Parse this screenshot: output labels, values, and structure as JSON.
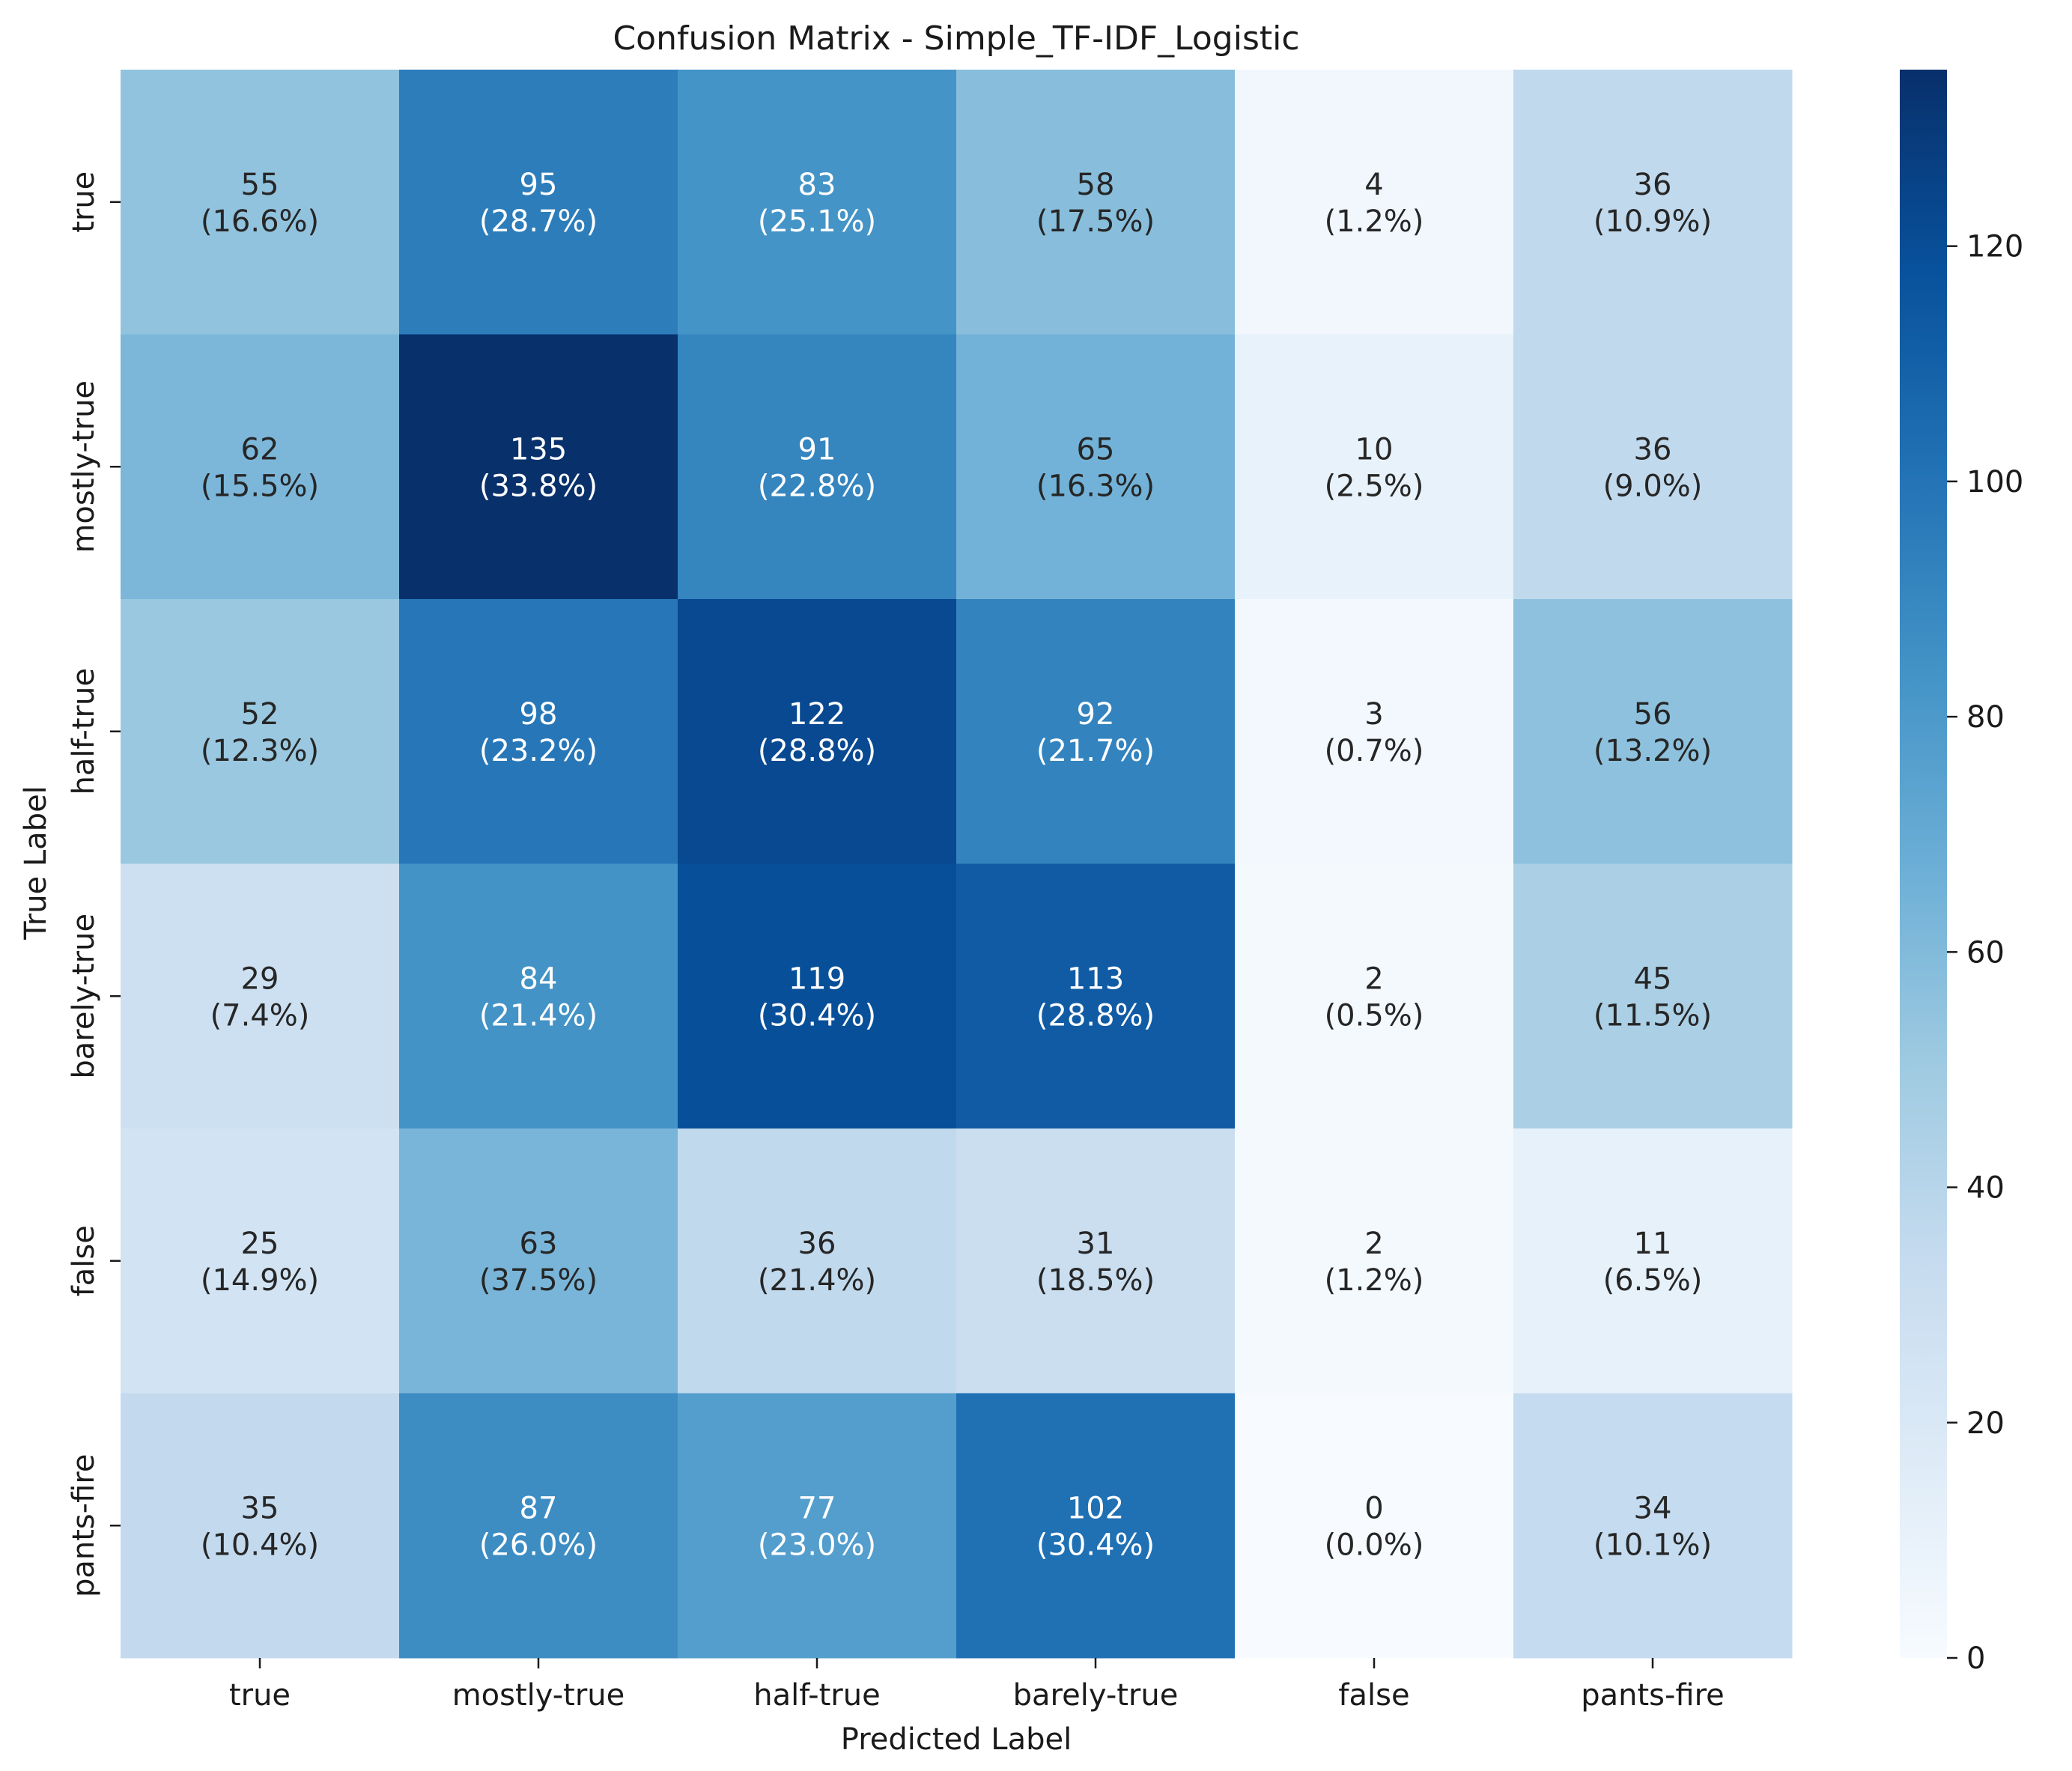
{
  "chart_data": {
    "type": "heatmap",
    "title": "Confusion Matrix - Simple_TF-IDF_Logistic",
    "xlabel": "Predicted Label",
    "ylabel": "True Label",
    "x_categories": [
      "true",
      "mostly-true",
      "half-true",
      "barely-true",
      "false",
      "pants-fire"
    ],
    "y_categories": [
      "true",
      "mostly-true",
      "half-true",
      "barely-true",
      "false",
      "pants-fire"
    ],
    "values": [
      [
        55,
        95,
        83,
        58,
        4,
        36
      ],
      [
        62,
        135,
        91,
        65,
        10,
        36
      ],
      [
        52,
        98,
        122,
        92,
        3,
        56
      ],
      [
        29,
        84,
        119,
        113,
        2,
        45
      ],
      [
        25,
        63,
        36,
        31,
        2,
        11
      ],
      [
        35,
        87,
        77,
        102,
        0,
        34
      ]
    ],
    "annotations": [
      [
        "(16.6%)",
        "(28.7%)",
        "(25.1%)",
        "(17.5%)",
        "(1.2%)",
        "(10.9%)"
      ],
      [
        "(15.5%)",
        "(33.8%)",
        "(22.8%)",
        "(16.3%)",
        "(2.5%)",
        "(9.0%)"
      ],
      [
        "(12.3%)",
        "(23.2%)",
        "(28.8%)",
        "(21.7%)",
        "(0.7%)",
        "(13.2%)"
      ],
      [
        "(7.4%)",
        "(21.4%)",
        "(30.4%)",
        "(28.8%)",
        "(0.5%)",
        "(11.5%)"
      ],
      [
        "(14.9%)",
        "(37.5%)",
        "(21.4%)",
        "(18.5%)",
        "(1.2%)",
        "(6.5%)"
      ],
      [
        "(10.4%)",
        "(26.0%)",
        "(23.0%)",
        "(30.4%)",
        "(0.0%)",
        "(10.1%)"
      ]
    ],
    "colorbar": {
      "colormap": "Blues",
      "range": [
        0,
        135
      ],
      "ticks": [
        0,
        20,
        40,
        60,
        80,
        100,
        120
      ]
    },
    "colors": {
      "low": "#f7fbff",
      "high": "#08306b",
      "text_dark": "#262626",
      "text_light": "#ffffff"
    }
  }
}
